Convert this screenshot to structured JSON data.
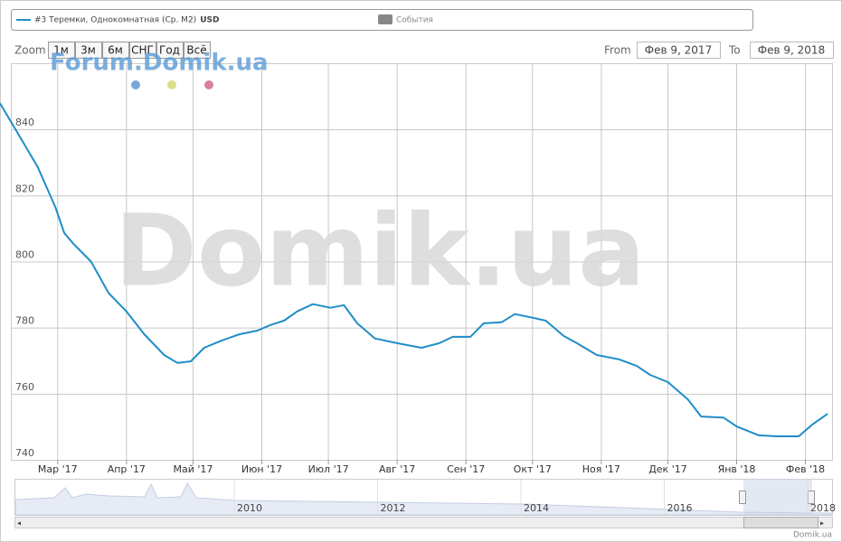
{
  "legend": {
    "unit": "USD",
    "events": "События"
  },
  "range_selector": {
    "label": "Zoom",
    "buttons": [
      "1м",
      "3м",
      "6м",
      "СНГ",
      "Год",
      "Всё"
    ],
    "from_label": "From",
    "from": "Фев 9, 2017",
    "to_label": "To",
    "to": "Фев 9, 2018"
  },
  "watermarks": {
    "forum": "Forum.Domik.ua",
    "big": "Domik.ua"
  },
  "credit": "Domik.ua",
  "navigator": {
    "years": [
      "2010",
      "2012",
      "2014",
      "2016",
      "2018"
    ]
  },
  "chart_data": {
    "type": "line",
    "x": [
      -6,
      0,
      11,
      19,
      23,
      27,
      35,
      43,
      51,
      59,
      68,
      74,
      80,
      86,
      94,
      102,
      110,
      116,
      122,
      128,
      135,
      143,
      149,
      155,
      163,
      173,
      184,
      192,
      198,
      206,
      212,
      220,
      226,
      234,
      240,
      248,
      254,
      263,
      273,
      281,
      287,
      295,
      304,
      310,
      320,
      326,
      336,
      344,
      354,
      360,
      367
    ],
    "series": [
      {
        "name": "#3 Теремки, Однокомнатная (Ср. М2)",
        "color": "#1f8dc8",
        "values": [
          847.9,
          841.1,
          828.6,
          816.4,
          808.6,
          805.4,
          800,
          790.4,
          784.9,
          778,
          771.7,
          769.3,
          769.8,
          773.9,
          776.1,
          778,
          779.1,
          780.8,
          782.1,
          784.9,
          787.1,
          786,
          786.8,
          781.3,
          776.7,
          775.3,
          773.9,
          775.3,
          777.2,
          777.2,
          781.3,
          781.6,
          784.1,
          783,
          782.1,
          777.5,
          775.3,
          771.7,
          770.4,
          768.4,
          765.7,
          763.5,
          758.3,
          753.1,
          752.8,
          750.1,
          747.4,
          747.1,
          747.1,
          750.6,
          753.9
        ]
      }
    ],
    "xlim": [
      -6,
      369
    ],
    "xticks": [
      {
        "value": 20,
        "label": "Мар '17"
      },
      {
        "value": 51,
        "label": "Апр '17"
      },
      {
        "value": 81,
        "label": "Май '17"
      },
      {
        "value": 112,
        "label": "Июн '17"
      },
      {
        "value": 142,
        "label": "Июл '17"
      },
      {
        "value": 173,
        "label": "Авг '17"
      },
      {
        "value": 204,
        "label": "Сен '17"
      },
      {
        "value": 234,
        "label": "Окт '17"
      },
      {
        "value": 265,
        "label": "Ноя '17"
      },
      {
        "value": 295,
        "label": "Дек '17"
      },
      {
        "value": 326,
        "label": "Янв '18"
      },
      {
        "value": 357,
        "label": "Фев '18"
      }
    ],
    "ylim": [
      740,
      860
    ],
    "yticks": [
      740,
      760,
      780,
      800,
      820,
      840
    ],
    "grid": true
  }
}
